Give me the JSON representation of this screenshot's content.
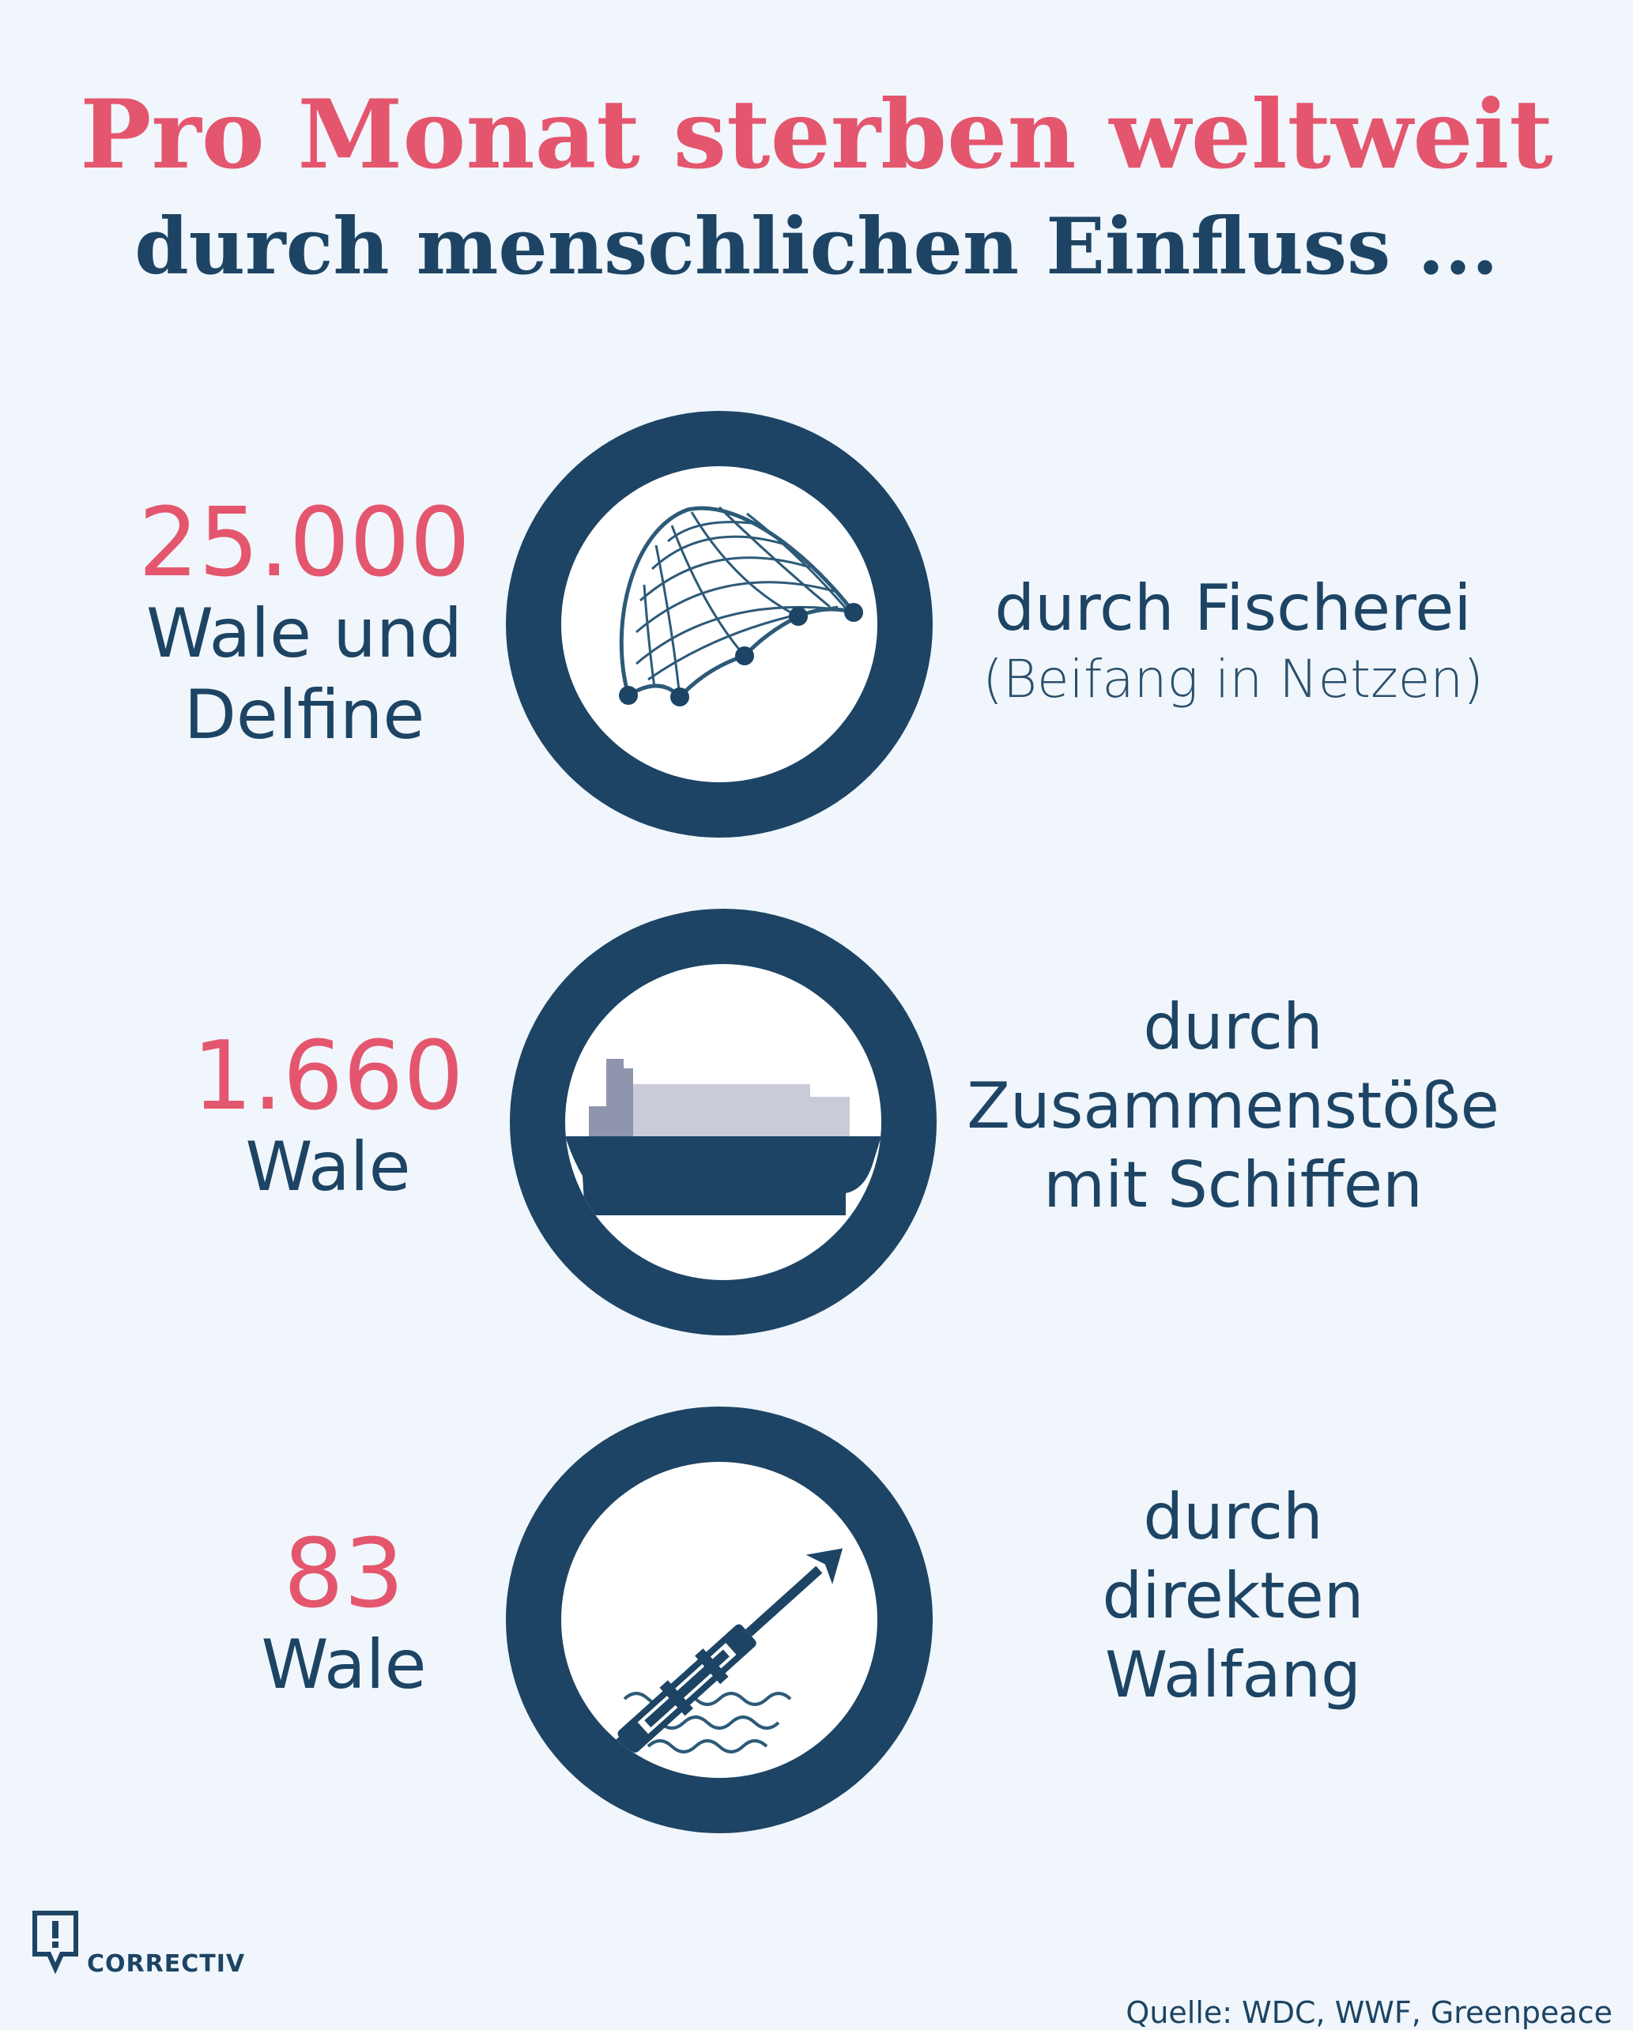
{
  "header": {
    "title_line1": "Pro Monat sterben weltweit",
    "title_line2": "durch menschlichen Einfluss ..."
  },
  "items": [
    {
      "value": "25.000",
      "label_lines": [
        "Wale und",
        "Delfine"
      ],
      "cause_lines": [
        "durch Fischerei"
      ],
      "cause_sub": "(Beifang in Netzen)",
      "icon": "fishing-net-icon"
    },
    {
      "value": "1.660",
      "label_lines": [
        "Wale"
      ],
      "cause_lines": [
        "durch",
        "Zusammenstöße",
        "mit Schiffen"
      ],
      "icon": "cargo-ship-icon"
    },
    {
      "value": "83",
      "label_lines": [
        "Wale"
      ],
      "cause_lines": [
        "durch",
        "direkten",
        "Walfang"
      ],
      "icon": "harpoon-icon"
    }
  ],
  "footer": {
    "logo_text": "CORRECTIV",
    "source": "Quelle: WDC, WWF, Greenpeace"
  },
  "colors": {
    "accent": "#e4566e",
    "primary": "#1d4464",
    "background": "#f0f6fb"
  }
}
